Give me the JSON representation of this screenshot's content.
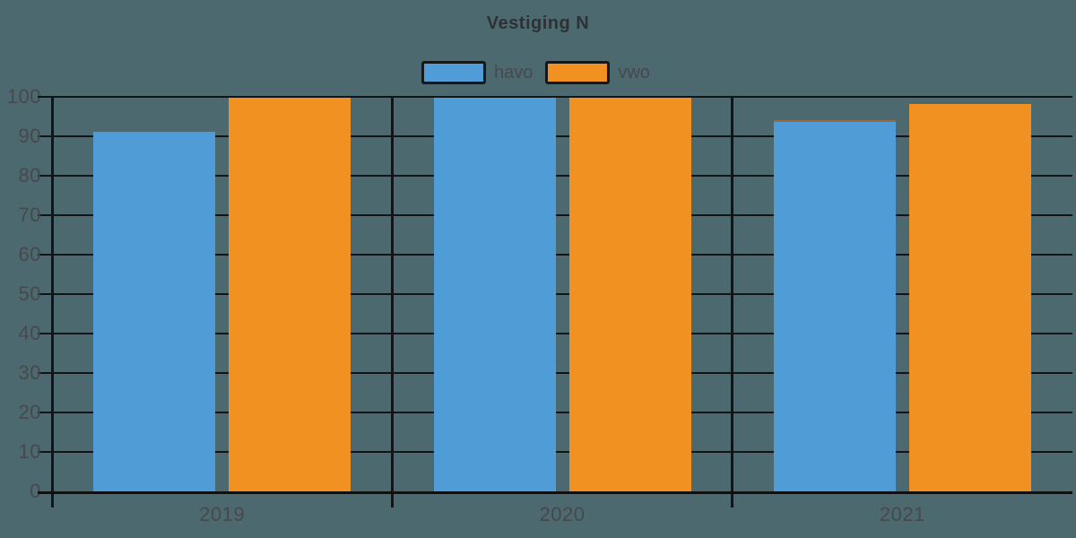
{
  "chart_data": {
    "type": "bar",
    "title": "Vestiging N",
    "categories": [
      "2019",
      "2020",
      "2021"
    ],
    "series": [
      {
        "name": "havo",
        "color": "#4F9CD6",
        "values": [
          91,
          100,
          94
        ]
      },
      {
        "name": "vwo",
        "color": "#F09122",
        "values": [
          100,
          100,
          98
        ]
      }
    ],
    "xlabel": "",
    "ylabel": "",
    "ylim": [
      0,
      100
    ],
    "yticks": [
      0,
      10,
      20,
      30,
      40,
      50,
      60,
      70,
      80,
      90,
      100
    ],
    "grid": true,
    "legend_position": "top-center",
    "annotations": [
      {
        "target": "havo 2021",
        "type": "thin-stripe-on-bar-top",
        "color": "#996B44"
      }
    ]
  },
  "colors": {
    "background": "#4D6970",
    "grid": "#121417",
    "axis": "#0E1012",
    "label": "#46494C",
    "title": "#2D3134",
    "legend_label": "#45494C"
  }
}
